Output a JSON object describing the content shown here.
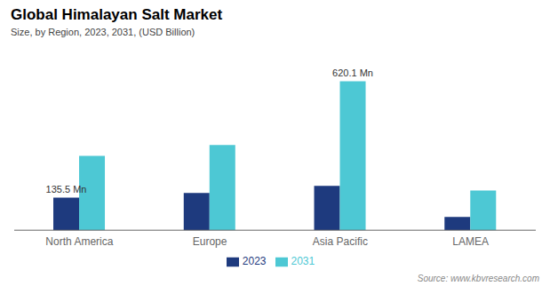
{
  "chart_data": {
    "type": "bar",
    "title": "Global Himalayan Salt Market",
    "subtitle": "Size, by Region, 2023, 2031, (USD Billion)",
    "categories": [
      "North America",
      "Europe",
      "Asia Pacific",
      "LAMEA"
    ],
    "series": [
      {
        "name": "2023",
        "color": "#1e3a7e",
        "values": [
          135.5,
          155,
          185,
          55
        ]
      },
      {
        "name": "2031",
        "color": "#4dc8d4",
        "values": [
          310,
          355,
          620.1,
          165
        ]
      }
    ],
    "ylim": [
      0,
      700
    ],
    "tick_labels": "x",
    "grid": false,
    "legend": "bottom",
    "annotations": [
      {
        "text": "135.5 Mn",
        "series": "2023",
        "category": "North America"
      },
      {
        "text": "620.1 Mn",
        "series": "2031",
        "category": "Asia Pacific"
      }
    ],
    "source": "Source: www.kbvresearch.com"
  }
}
